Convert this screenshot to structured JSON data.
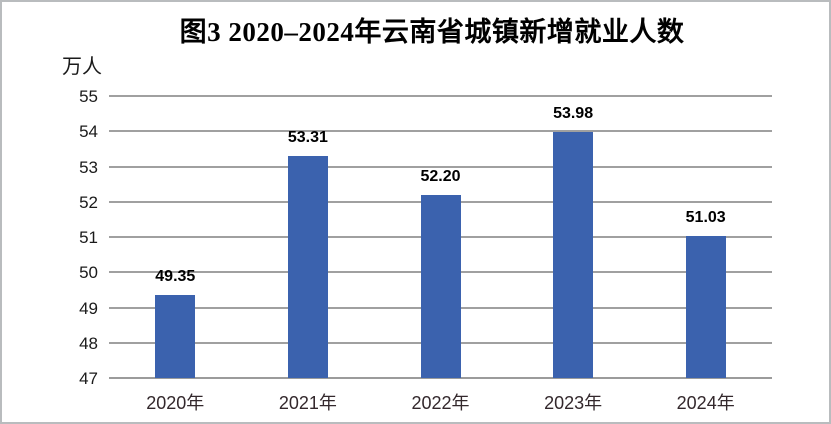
{
  "frame": {
    "background": "#ffffff",
    "border_color": "#b9bcbe"
  },
  "chart_data": {
    "type": "bar",
    "title": "图3  2020–2024年云南省城镇新增就业人数",
    "unit_label": "万人",
    "categories": [
      "2020年",
      "2021年",
      "2022年",
      "2023年",
      "2024年"
    ],
    "values": [
      49.35,
      53.31,
      52.2,
      53.98,
      51.03
    ],
    "value_labels": [
      "49.35",
      "53.31",
      "52.20",
      "53.98",
      "51.03"
    ],
    "xlabel": "",
    "ylabel": "万人",
    "ylim": [
      47,
      55
    ],
    "yticks": [
      55,
      54,
      53,
      52,
      51,
      50,
      49,
      48,
      47
    ],
    "grid": true,
    "legend": "none",
    "colors": {
      "bar": "#3b62ae",
      "gridline": "#a0a0a0",
      "axis_line": "#9b9b9b",
      "ytick_text": "#1a1a1a",
      "xtick_text": "#33282c",
      "value_text": "#000000",
      "title_text": "#000000"
    }
  }
}
